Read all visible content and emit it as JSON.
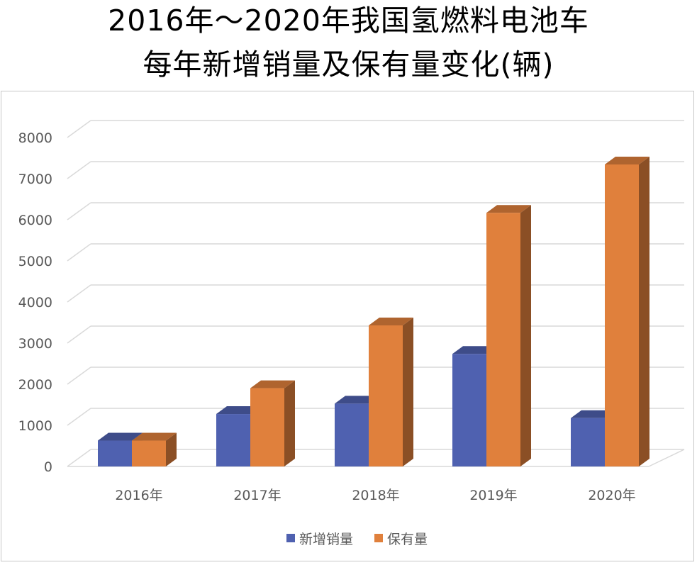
{
  "chart_data": {
    "type": "bar",
    "title_line1": "2016年～2020年我国氢燃料电池车",
    "title_line2": "每年新增销量及保有量变化(辆)",
    "categories": [
      "2016年",
      "2017年",
      "2018年",
      "2019年",
      "2020年"
    ],
    "series": [
      {
        "name": "新增销量",
        "values": [
          629,
          1275,
          1527,
          2737,
          1177
        ],
        "color": "#4f61b0"
      },
      {
        "name": "保有量",
        "values": [
          629,
          1904,
          3431,
          6168,
          7345
        ],
        "color": "#e0803c"
      }
    ],
    "yticks": [
      "0",
      "1000",
      "2000",
      "3000",
      "4000",
      "5000",
      "6000",
      "7000",
      "8000"
    ],
    "ylim": [
      0,
      8000
    ],
    "grid": true,
    "legend_position": "bottom",
    "style": "3d-clustered-column"
  }
}
